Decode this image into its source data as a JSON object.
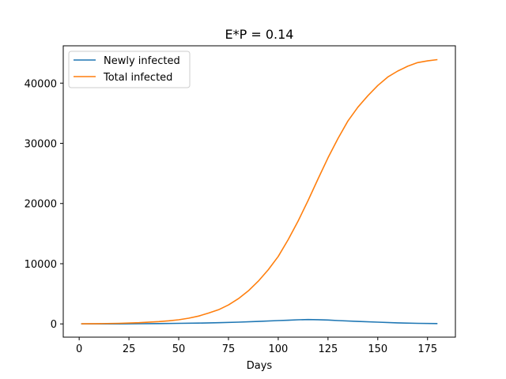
{
  "chart_data": {
    "type": "line",
    "title": "E*P = 0.14",
    "xlabel": "Days",
    "ylabel": "",
    "xlim": [
      -8,
      189
    ],
    "ylim": [
      -2200,
      46200
    ],
    "xticks": [
      0,
      25,
      50,
      75,
      100,
      125,
      150,
      175
    ],
    "yticks": [
      0,
      10000,
      20000,
      30000,
      40000
    ],
    "grid": false,
    "legend_position": "top-left",
    "series": [
      {
        "name": "Newly infected",
        "color": "#1f77b4",
        "x": [
          1,
          10,
          20,
          30,
          40,
          50,
          60,
          70,
          80,
          90,
          100,
          105,
          110,
          115,
          120,
          125,
          130,
          140,
          150,
          160,
          170,
          180
        ],
        "y": [
          2,
          4,
          10,
          25,
          50,
          90,
          140,
          200,
          290,
          410,
          550,
          610,
          680,
          720,
          700,
          640,
          560,
          410,
          290,
          170,
          100,
          60
        ]
      },
      {
        "name": "Total infected",
        "color": "#ff7f0e",
        "x": [
          1,
          10,
          20,
          30,
          40,
          45,
          50,
          55,
          60,
          65,
          70,
          75,
          80,
          85,
          90,
          95,
          100,
          105,
          110,
          115,
          120,
          125,
          130,
          135,
          140,
          145,
          150,
          155,
          160,
          165,
          170,
          175,
          180
        ],
        "y": [
          15,
          40,
          100,
          200,
          380,
          510,
          690,
          950,
          1300,
          1800,
          2350,
          3150,
          4200,
          5500,
          7100,
          9000,
          11200,
          14000,
          17100,
          20500,
          24100,
          27600,
          30800,
          33700,
          36000,
          37900,
          39600,
          41000,
          42000,
          42800,
          43400,
          43700,
          43900
        ]
      }
    ]
  }
}
